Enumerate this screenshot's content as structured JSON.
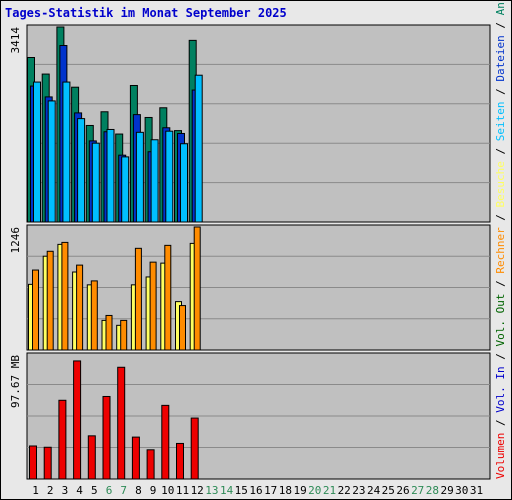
{
  "colors": {
    "background": "#e8e8e8",
    "plot_background": "#c0c0c0",
    "title": "#0000cc",
    "weekend_label": "#2e8b57",
    "weekday_label": "#000000",
    "hits": "#008060",
    "files": "#0033cc",
    "pages": "#00bfff",
    "visits": "#ffff60",
    "sites": "#ff8c00",
    "kbytes": "#ee0000",
    "kin": "#0000cc",
    "kout": "#006400"
  },
  "chart_data": [
    {
      "type": "bar",
      "panel": "hits_files_pages",
      "title": "Tages-Statistik im Monat September 2025",
      "y_max_label": "3414",
      "ylim": [
        0,
        3414
      ],
      "grid": true,
      "categories": [
        "1",
        "2",
        "3",
        "4",
        "5",
        "6",
        "7",
        "8",
        "9",
        "10",
        "11",
        "12",
        "13",
        "14",
        "15",
        "16",
        "17",
        "18",
        "19",
        "20",
        "21",
        "22",
        "23",
        "24",
        "25",
        "26",
        "27",
        "28",
        "29",
        "30",
        "31"
      ],
      "weekend_days": [
        "6",
        "7",
        "13",
        "14",
        "20",
        "21",
        "27",
        "28"
      ],
      "series": [
        {
          "name": "Anfragen",
          "color": "#008060",
          "values": [
            2880,
            2590,
            3414,
            2360,
            1690,
            1930,
            1540,
            2390,
            1830,
            2000,
            1600,
            3180,
            null,
            null,
            null,
            null,
            null,
            null,
            null,
            null,
            null,
            null,
            null,
            null,
            null,
            null,
            null,
            null,
            null,
            null,
            null
          ]
        },
        {
          "name": "Dateien",
          "color": "#0033cc",
          "values": [
            2380,
            2190,
            3090,
            1910,
            1420,
            1580,
            1170,
            1880,
            1230,
            1650,
            1550,
            2310,
            null,
            null,
            null,
            null,
            null,
            null,
            null,
            null,
            null,
            null,
            null,
            null,
            null,
            null,
            null,
            null,
            null,
            null,
            null
          ]
        },
        {
          "name": "Seiten",
          "color": "#00bfff",
          "values": [
            2450,
            2120,
            2450,
            1810,
            1380,
            1620,
            1140,
            1570,
            1440,
            1590,
            1370,
            2570,
            null,
            null,
            null,
            null,
            null,
            null,
            null,
            null,
            null,
            null,
            null,
            null,
            null,
            null,
            null,
            null,
            null,
            null,
            null
          ]
        }
      ],
      "side_label": [
        "Anfragen",
        "Dateien",
        "Seiten"
      ]
    },
    {
      "type": "bar",
      "panel": "visits_sites",
      "y_max_label": "1246",
      "ylim": [
        0,
        1246
      ],
      "grid": true,
      "series": [
        {
          "name": "Besuche",
          "color": "#ffff60",
          "values": [
            665,
            950,
            1070,
            790,
            660,
            300,
            250,
            660,
            740,
            880,
            490,
            1080,
            null,
            null,
            null,
            null,
            null,
            null,
            null,
            null,
            null,
            null,
            null,
            null,
            null,
            null,
            null,
            null,
            null,
            null,
            null
          ]
        },
        {
          "name": "Rechner",
          "color": "#ff8c00",
          "values": [
            810,
            1000,
            1090,
            860,
            700,
            350,
            300,
            1030,
            890,
            1060,
            450,
            1246,
            null,
            null,
            null,
            null,
            null,
            null,
            null,
            null,
            null,
            null,
            null,
            null,
            null,
            null,
            null,
            null,
            null,
            null,
            null
          ]
        }
      ],
      "side_label": [
        "Besuche",
        "Rechner"
      ]
    },
    {
      "type": "bar",
      "panel": "volume",
      "y_max_label": "97.67 MB",
      "ylim": [
        0,
        97.67
      ],
      "grid": true,
      "series": [
        {
          "name": "Volumen",
          "color": "#ee0000",
          "values": [
            26,
            25,
            62,
            93,
            34,
            65,
            88,
            33,
            23,
            58,
            28,
            48,
            null,
            null,
            null,
            null,
            null,
            null,
            null,
            null,
            null,
            null,
            null,
            null,
            null,
            null,
            null,
            null,
            null,
            null,
            null
          ]
        }
      ],
      "side_label": [
        "Vol. Out",
        "Vol. In",
        "Volumen"
      ]
    }
  ]
}
